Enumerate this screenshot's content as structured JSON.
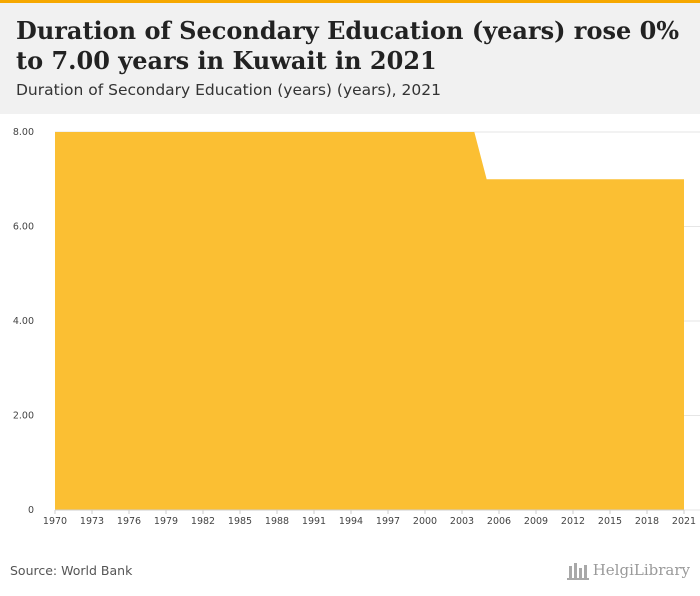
{
  "header": {
    "title": "Duration of Secondary Education (years) rose 0% to 7.00 years in Kuwait in 2021",
    "subtitle": "Duration of Secondary Education (years) (years), 2021"
  },
  "footer": {
    "source": "Source: World Bank",
    "brand": "HelgiLibrary"
  },
  "colors": {
    "accent": "#f6a800",
    "area_fill": "#fbbf33",
    "header_bg": "#f1f1f1"
  },
  "chart_data": {
    "type": "area",
    "x": [
      1970,
      1971,
      1972,
      1973,
      1974,
      1975,
      1976,
      1977,
      1978,
      1979,
      1980,
      1981,
      1982,
      1983,
      1984,
      1985,
      1986,
      1987,
      1988,
      1989,
      1990,
      1991,
      1992,
      1993,
      1994,
      1995,
      1996,
      1997,
      1998,
      1999,
      2000,
      2001,
      2002,
      2003,
      2004,
      2005,
      2006,
      2007,
      2008,
      2009,
      2010,
      2011,
      2012,
      2013,
      2014,
      2015,
      2016,
      2017,
      2018,
      2019,
      2020,
      2021
    ],
    "series": [
      {
        "values": [
          8,
          8,
          8,
          8,
          8,
          8,
          8,
          8,
          8,
          8,
          8,
          8,
          8,
          8,
          8,
          8,
          8,
          8,
          8,
          8,
          8,
          8,
          8,
          8,
          8,
          8,
          8,
          8,
          8,
          8,
          8,
          8,
          8,
          8,
          8,
          7,
          7,
          7,
          7,
          7,
          7,
          7,
          7,
          7,
          7,
          7,
          7,
          7,
          7,
          7,
          7,
          7
        ]
      }
    ],
    "x_ticks": [
      "1970",
      "1973",
      "1976",
      "1979",
      "1982",
      "1985",
      "1988",
      "1991",
      "1994",
      "1997",
      "2000",
      "2003",
      "2006",
      "2009",
      "2012",
      "2015",
      "2018",
      "2021"
    ],
    "y_ticks": [
      "0",
      "2.00",
      "4.00",
      "6.00",
      "8.00"
    ],
    "ylim": [
      0,
      8
    ],
    "grid": true,
    "legend": false
  }
}
